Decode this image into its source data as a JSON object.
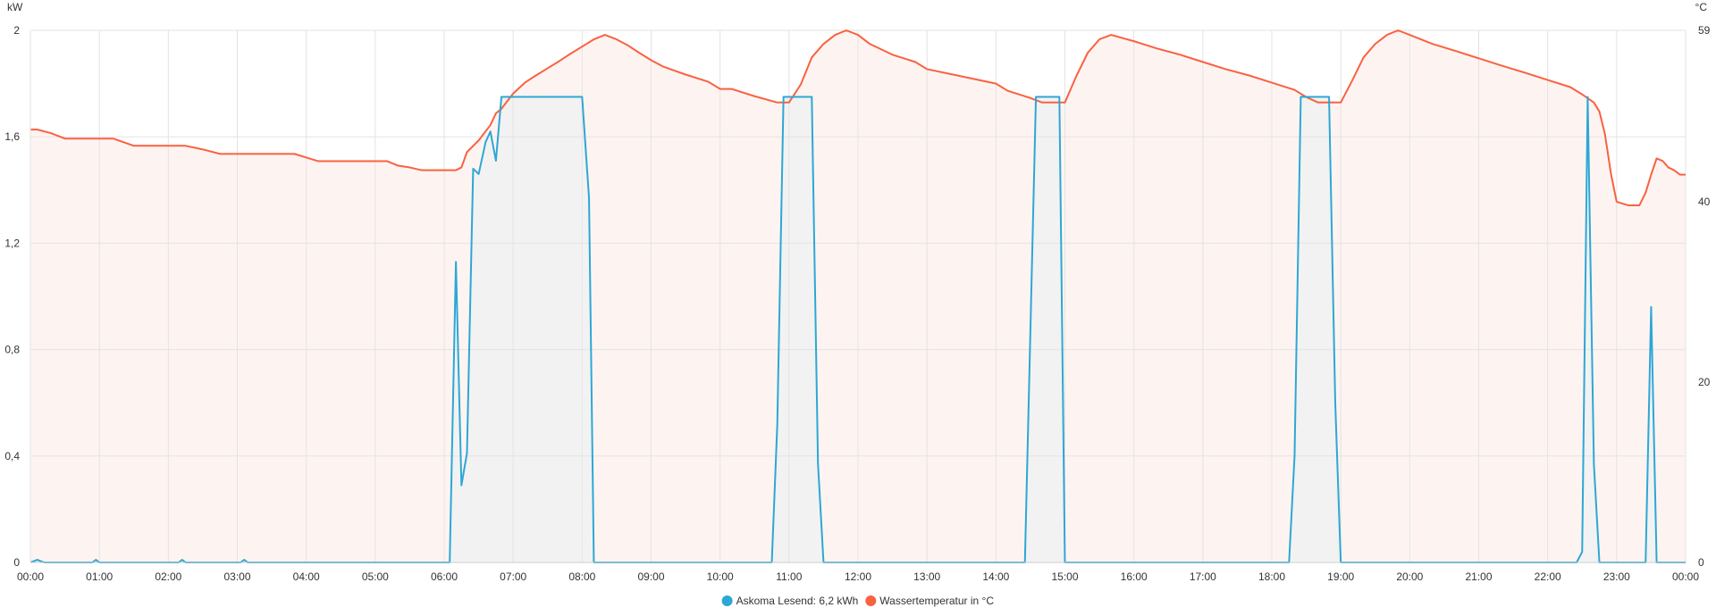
{
  "chart_data": {
    "type": "line",
    "x_tick_labels": [
      "00:00",
      "01:00",
      "02:00",
      "03:00",
      "04:00",
      "05:00",
      "06:00",
      "07:00",
      "08:00",
      "09:00",
      "10:00",
      "11:00",
      "12:00",
      "13:00",
      "14:00",
      "15:00",
      "16:00",
      "17:00",
      "18:00",
      "19:00",
      "20:00",
      "21:00",
      "22:00",
      "23:00",
      "00:00"
    ],
    "xlim": [
      0,
      24
    ],
    "y_left": {
      "unit": "kW",
      "ylim": [
        0,
        2
      ],
      "tick_labels": [
        "0",
        "0,4",
        "0,8",
        "1,2",
        "1,6",
        "2"
      ],
      "tick_values": [
        0,
        0.4,
        0.8,
        1.2,
        1.6,
        2
      ]
    },
    "y_right": {
      "unit": "°C",
      "ylim": [
        0,
        59
      ],
      "tick_labels": [
        "0",
        "20",
        "40",
        "59"
      ],
      "tick_values": [
        0,
        20,
        40,
        59
      ]
    },
    "grid": true,
    "legend_position": "bottom-center",
    "series": [
      {
        "name": "Askoma Lesend: 6,2 kWh",
        "axis": "left",
        "color": "#2ea7d4",
        "fill": "#f2f2f2",
        "points": [
          [
            0,
            0
          ],
          [
            0.1,
            0.01
          ],
          [
            0.2,
            0
          ],
          [
            0.9,
            0
          ],
          [
            0.95,
            0.01
          ],
          [
            1.0,
            0
          ],
          [
            2.15,
            0
          ],
          [
            2.2,
            0.01
          ],
          [
            2.25,
            0
          ],
          [
            3.05,
            0
          ],
          [
            3.1,
            0.01
          ],
          [
            3.15,
            0
          ],
          [
            6.08,
            0
          ],
          [
            6.17,
            1.13
          ],
          [
            6.25,
            0.29
          ],
          [
            6.33,
            0.41
          ],
          [
            6.42,
            1.48
          ],
          [
            6.5,
            1.46
          ],
          [
            6.6,
            1.58
          ],
          [
            6.67,
            1.62
          ],
          [
            6.75,
            1.51
          ],
          [
            6.83,
            1.75
          ],
          [
            6.92,
            1.75
          ],
          [
            8.0,
            1.75
          ],
          [
            8.1,
            1.37
          ],
          [
            8.17,
            0
          ],
          [
            10.75,
            0
          ],
          [
            10.83,
            0.52
          ],
          [
            10.92,
            1.75
          ],
          [
            11.33,
            1.75
          ],
          [
            11.42,
            0.37
          ],
          [
            11.5,
            0
          ],
          [
            14.42,
            0
          ],
          [
            14.58,
            1.75
          ],
          [
            14.92,
            1.75
          ],
          [
            15.0,
            0
          ],
          [
            18.25,
            0
          ],
          [
            18.33,
            0.4
          ],
          [
            18.42,
            1.75
          ],
          [
            18.83,
            1.75
          ],
          [
            18.92,
            0.6
          ],
          [
            19.0,
            0
          ],
          [
            22.42,
            0
          ],
          [
            22.5,
            0.04
          ],
          [
            22.58,
            1.75
          ],
          [
            22.67,
            0.37
          ],
          [
            22.75,
            0
          ],
          [
            23.42,
            0
          ],
          [
            23.5,
            0.96
          ],
          [
            23.58,
            0
          ],
          [
            24,
            0
          ]
        ]
      },
      {
        "name": "Wassertemperatur in °C",
        "axis": "right",
        "color": "#fa6140",
        "fill": "#fdf4f2",
        "points": [
          [
            0,
            48
          ],
          [
            0.1,
            48
          ],
          [
            0.3,
            47.6
          ],
          [
            0.5,
            47
          ],
          [
            1.0,
            47
          ],
          [
            1.2,
            47
          ],
          [
            1.5,
            46.2
          ],
          [
            2.0,
            46.2
          ],
          [
            2.25,
            46.2
          ],
          [
            2.5,
            45.8
          ],
          [
            2.75,
            45.3
          ],
          [
            3.0,
            45.3
          ],
          [
            3.5,
            45.3
          ],
          [
            3.83,
            45.3
          ],
          [
            4.0,
            44.9
          ],
          [
            4.17,
            44.5
          ],
          [
            5.0,
            44.5
          ],
          [
            5.17,
            44.5
          ],
          [
            5.33,
            44
          ],
          [
            5.5,
            43.8
          ],
          [
            5.67,
            43.5
          ],
          [
            6.0,
            43.5
          ],
          [
            6.17,
            43.5
          ],
          [
            6.25,
            43.8
          ],
          [
            6.33,
            45.5
          ],
          [
            6.5,
            46.8
          ],
          [
            6.67,
            48.5
          ],
          [
            6.75,
            49.8
          ],
          [
            6.83,
            50.3
          ],
          [
            7.0,
            52
          ],
          [
            7.17,
            53.2
          ],
          [
            7.33,
            54
          ],
          [
            7.5,
            54.8
          ],
          [
            7.67,
            55.6
          ],
          [
            7.83,
            56.4
          ],
          [
            8.0,
            57.2
          ],
          [
            8.17,
            58
          ],
          [
            8.33,
            58.5
          ],
          [
            8.5,
            58
          ],
          [
            8.67,
            57.3
          ],
          [
            8.83,
            56.5
          ],
          [
            9.0,
            55.7
          ],
          [
            9.17,
            55
          ],
          [
            9.5,
            54.1
          ],
          [
            9.83,
            53.3
          ],
          [
            10.0,
            52.5
          ],
          [
            10.17,
            52.5
          ],
          [
            10.5,
            51.7
          ],
          [
            10.83,
            51
          ],
          [
            11.0,
            51
          ],
          [
            11.17,
            53
          ],
          [
            11.33,
            56
          ],
          [
            11.5,
            57.5
          ],
          [
            11.67,
            58.5
          ],
          [
            11.83,
            59
          ],
          [
            12.0,
            58.5
          ],
          [
            12.17,
            57.5
          ],
          [
            12.5,
            56.3
          ],
          [
            12.83,
            55.5
          ],
          [
            13.0,
            54.7
          ],
          [
            13.5,
            53.9
          ],
          [
            14.0,
            53.1
          ],
          [
            14.17,
            52.3
          ],
          [
            14.5,
            51.5
          ],
          [
            14.67,
            51
          ],
          [
            15.0,
            51
          ],
          [
            15.17,
            54
          ],
          [
            15.33,
            56.5
          ],
          [
            15.5,
            58
          ],
          [
            15.67,
            58.5
          ],
          [
            16.0,
            57.8
          ],
          [
            16.33,
            57
          ],
          [
            16.67,
            56.3
          ],
          [
            17.0,
            55.5
          ],
          [
            17.33,
            54.7
          ],
          [
            17.67,
            54
          ],
          [
            18.0,
            53.2
          ],
          [
            18.33,
            52.4
          ],
          [
            18.5,
            51.6
          ],
          [
            18.67,
            51
          ],
          [
            18.83,
            51
          ],
          [
            19.0,
            51
          ],
          [
            19.17,
            53.5
          ],
          [
            19.33,
            56
          ],
          [
            19.5,
            57.5
          ],
          [
            19.67,
            58.5
          ],
          [
            19.83,
            59
          ],
          [
            20.0,
            58.5
          ],
          [
            20.33,
            57.5
          ],
          [
            20.67,
            56.7
          ],
          [
            21.0,
            55.9
          ],
          [
            21.33,
            55.1
          ],
          [
            21.67,
            54.3
          ],
          [
            22.0,
            53.5
          ],
          [
            22.33,
            52.7
          ],
          [
            22.5,
            51.9
          ],
          [
            22.67,
            51
          ],
          [
            22.75,
            50
          ],
          [
            22.83,
            47.5
          ],
          [
            22.92,
            43
          ],
          [
            23.0,
            40
          ],
          [
            23.08,
            39.8
          ],
          [
            23.17,
            39.6
          ],
          [
            23.25,
            39.6
          ],
          [
            23.33,
            39.6
          ],
          [
            23.42,
            41
          ],
          [
            23.5,
            43
          ],
          [
            23.58,
            44.8
          ],
          [
            23.67,
            44.5
          ],
          [
            23.75,
            43.8
          ],
          [
            23.83,
            43.5
          ],
          [
            23.92,
            43
          ],
          [
            24,
            43
          ]
        ]
      }
    ]
  }
}
